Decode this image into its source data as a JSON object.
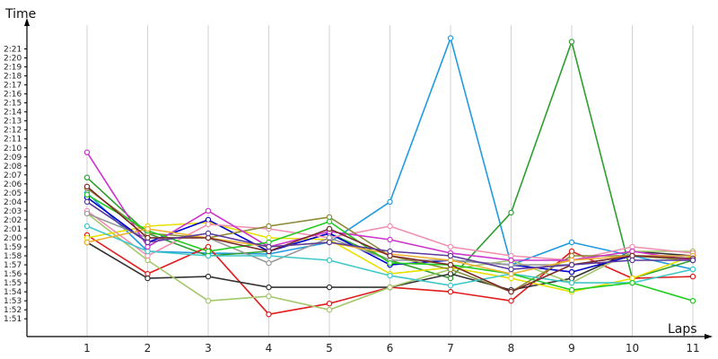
{
  "chart_data": {
    "type": "line",
    "title": "",
    "xlabel": "Laps",
    "ylabel": "Time",
    "x": [
      1,
      2,
      3,
      4,
      5,
      6,
      7,
      8,
      9,
      10,
      11
    ],
    "y_ticks": [
      "1:51",
      "1:52",
      "1:53",
      "1:54",
      "1:55",
      "1:56",
      "1:57",
      "1:58",
      "1:59",
      "2:00",
      "2:01",
      "2:02",
      "2:03",
      "2:04",
      "2:05",
      "2:06",
      "2:07",
      "2:08",
      "2:09",
      "2:10",
      "2:11",
      "2:12",
      "2:13",
      "2:14",
      "2:15",
      "2:16",
      "2:17",
      "2:18",
      "2:19",
      "2:20",
      "2:21"
    ],
    "ylim_seconds": [
      110,
      144
    ],
    "grid": {
      "vertical": true,
      "horizontal": false
    },
    "legend": "none",
    "series": [
      {
        "color": "#1e9be0",
        "values": [
          125.0,
          118.5,
          118.3,
          118.2,
          119.5,
          124.0,
          142.2,
          117.0,
          119.5,
          118.0,
          116.5
        ]
      },
      {
        "color": "#2e9e2e",
        "values": [
          126.7,
          120.5,
          118.0,
          118.5,
          120.5,
          117.5,
          115.5,
          122.8,
          141.8,
          115.5,
          117.5
        ]
      },
      {
        "color": "#e01c1c",
        "values": [
          120.3,
          116.0,
          119.0,
          111.5,
          112.7,
          114.5,
          114.0,
          113.0,
          118.5,
          115.5,
          115.7
        ]
      },
      {
        "color": "#333333",
        "values": [
          119.5,
          115.5,
          115.7,
          114.5,
          114.5,
          114.5,
          116.0,
          114.2,
          115.5,
          118.5,
          118.0
        ]
      },
      {
        "color": "#a3c76b",
        "values": [
          122.7,
          117.5,
          113.0,
          113.5,
          112.0,
          114.5,
          116.5,
          117.5,
          115.0,
          118.5,
          118.5
        ]
      },
      {
        "color": "#e8e000",
        "values": [
          120.0,
          121.3,
          121.7,
          120.0,
          119.8,
          116.0,
          116.7,
          115.5,
          114.0,
          115.5,
          118.0
        ]
      },
      {
        "color": "#0000cc",
        "values": [
          124.5,
          119.5,
          122.0,
          118.5,
          120.5,
          117.0,
          117.5,
          117.0,
          116.2,
          118.0,
          118.0
        ]
      },
      {
        "color": "#f090b0",
        "values": [
          123.0,
          118.0,
          121.5,
          121.0,
          120.0,
          121.3,
          119.0,
          118.0,
          117.5,
          119.0,
          118.3
        ]
      },
      {
        "color": "#999999",
        "values": [
          122.7,
          120.0,
          120.0,
          117.2,
          120.0,
          117.5,
          117.5,
          117.0,
          117.0,
          118.0,
          117.5
        ]
      },
      {
        "color": "#8a8a3a",
        "values": [
          125.5,
          120.5,
          120.0,
          121.3,
          122.3,
          118.0,
          116.5,
          114.0,
          118.0,
          118.0,
          117.5
        ]
      },
      {
        "color": "#40c8c8",
        "values": [
          121.3,
          118.5,
          118.0,
          118.0,
          117.5,
          115.8,
          114.7,
          116.0,
          115.0,
          115.0,
          116.5
        ]
      },
      {
        "color": "#cc33cc",
        "values": [
          129.5,
          119.0,
          123.0,
          119.0,
          120.7,
          119.8,
          118.3,
          117.5,
          117.5,
          118.5,
          117.5
        ]
      },
      {
        "color": "#22cc22",
        "values": [
          124.8,
          120.8,
          118.5,
          119.5,
          121.8,
          117.2,
          117.0,
          116.0,
          114.2,
          115.0,
          113.0
        ]
      },
      {
        "color": "#f0b030",
        "values": [
          119.5,
          121.0,
          120.0,
          119.0,
          119.5,
          118.2,
          117.5,
          116.0,
          117.5,
          118.0,
          118.0
        ]
      },
      {
        "color": "#7a2a2a",
        "values": [
          125.7,
          120.0,
          120.0,
          118.5,
          121.0,
          118.0,
          117.0,
          114.0,
          117.0,
          118.0,
          117.7
        ]
      },
      {
        "color": "#5a3a9a",
        "values": [
          124.0,
          119.5,
          120.5,
          119.0,
          119.5,
          118.5,
          118.0,
          116.5,
          117.0,
          117.5,
          117.5
        ]
      }
    ]
  }
}
